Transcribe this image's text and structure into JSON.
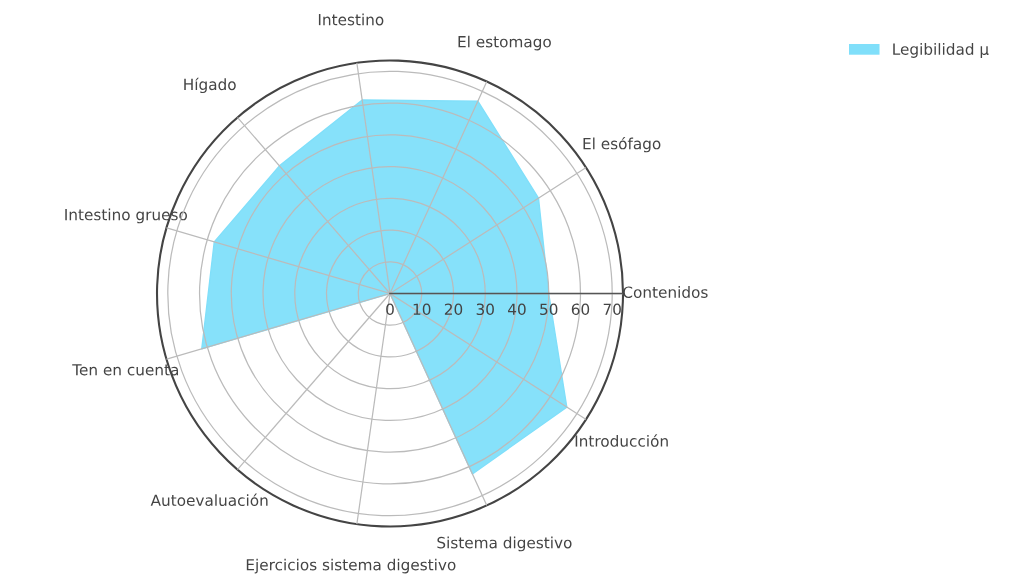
{
  "chart_data": {
    "type": "radar",
    "categories": [
      "El estomago",
      "El esófago",
      "Contenidos",
      "Introducción",
      "Sistema digestivo",
      "Ejercicios sistema digestivo",
      "Autoevaluación",
      "Ten en cuenta",
      "Intestino grueso",
      "Hígado",
      "Intestino"
    ],
    "series": [
      {
        "name": "Legibilidad μ",
        "color": "#80dffa",
        "values": [
          66.6,
          55.6,
          50,
          66.2,
          62.5,
          0,
          0,
          61.8,
          57.7,
          53.2,
          61.6
        ]
      }
    ],
    "ylim": [
      0,
      73.4
    ],
    "yticks": [
      0,
      10,
      20,
      30,
      40,
      50,
      60,
      70
    ],
    "grid": true,
    "legend": "top right"
  }
}
